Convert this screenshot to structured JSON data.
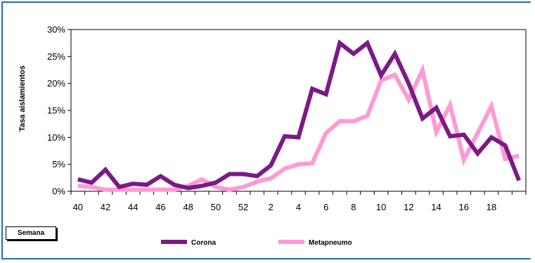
{
  "chart_data": {
    "type": "line",
    "ylabel": "Tasa aislamientos",
    "xlabel": "Semana",
    "y_ticks": [
      "0%",
      "5%",
      "10%",
      "15%",
      "20%",
      "25%",
      "30%"
    ],
    "ylim": [
      0,
      30
    ],
    "x": [
      40,
      41,
      42,
      43,
      44,
      45,
      46,
      47,
      48,
      49,
      50,
      51,
      52,
      1,
      2,
      3,
      4,
      5,
      6,
      7,
      8,
      9,
      10,
      11,
      12,
      13,
      14,
      15,
      16,
      17,
      18,
      19,
      20
    ],
    "x_tick_labels": [
      "40",
      "42",
      "44",
      "46",
      "48",
      "50",
      "52",
      "2",
      "4",
      "6",
      "8",
      "10",
      "12",
      "14",
      "16",
      "18"
    ],
    "grid": false,
    "legend_position": "bottom",
    "series": [
      {
        "name": "Corona",
        "color": "#7b1a86",
        "values": [
          2.2,
          1.6,
          4.0,
          0.8,
          1.4,
          1.2,
          2.8,
          1.2,
          0.6,
          1.0,
          1.6,
          3.2,
          3.2,
          2.8,
          4.8,
          10.2,
          10.0,
          19.0,
          18.0,
          27.5,
          25.5,
          27.5,
          21.5,
          25.5,
          20.0,
          13.5,
          15.5,
          10.2,
          10.5,
          7.0,
          10.0,
          8.5,
          2.0
        ]
      },
      {
        "name": "Metapneumo",
        "color": "#ff9ad5",
        "values": [
          1.0,
          0.8,
          0.3,
          0.3,
          0.3,
          0.3,
          0.3,
          0.3,
          1.0,
          2.2,
          0.8,
          0.3,
          0.8,
          1.8,
          2.4,
          4.2,
          5.0,
          5.2,
          10.8,
          13.0,
          13.0,
          14.0,
          20.6,
          21.6,
          17.0,
          22.5,
          11.0,
          16.0,
          5.8,
          10.8,
          15.8,
          6.0,
          6.6
        ]
      }
    ]
  }
}
